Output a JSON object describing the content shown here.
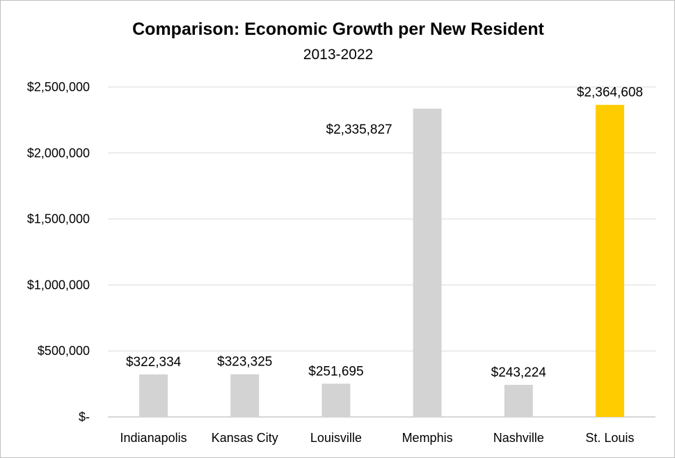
{
  "chart_data": {
    "type": "bar",
    "title": "Comparison: Economic Growth per New Resident",
    "subtitle": "2013-2022",
    "xlabel": "",
    "ylabel": "",
    "categories": [
      "Indianapolis",
      "Kansas City",
      "Louisville",
      "Memphis",
      "Nashville",
      "St. Louis"
    ],
    "values": [
      322334,
      323325,
      251695,
      2335827,
      243224,
      2364608
    ],
    "data_labels": [
      "$322,334",
      "$323,325",
      "$251,695",
      "$2,335,827",
      "$243,224",
      "$2,364,608"
    ],
    "ylim": [
      0,
      2500000
    ],
    "yticks": [
      0,
      500000,
      1000000,
      1500000,
      2000000,
      2500000
    ],
    "ytick_labels": [
      "$-",
      "$500,000",
      "$1,000,000",
      "$1,500,000",
      "$2,000,000",
      "$2,500,000"
    ],
    "grid": true,
    "legend": "none",
    "colors": {
      "default_bar": "#d3d3d3",
      "highlight_bar": "#ffcc00",
      "highlight_category": "St. Louis"
    }
  }
}
